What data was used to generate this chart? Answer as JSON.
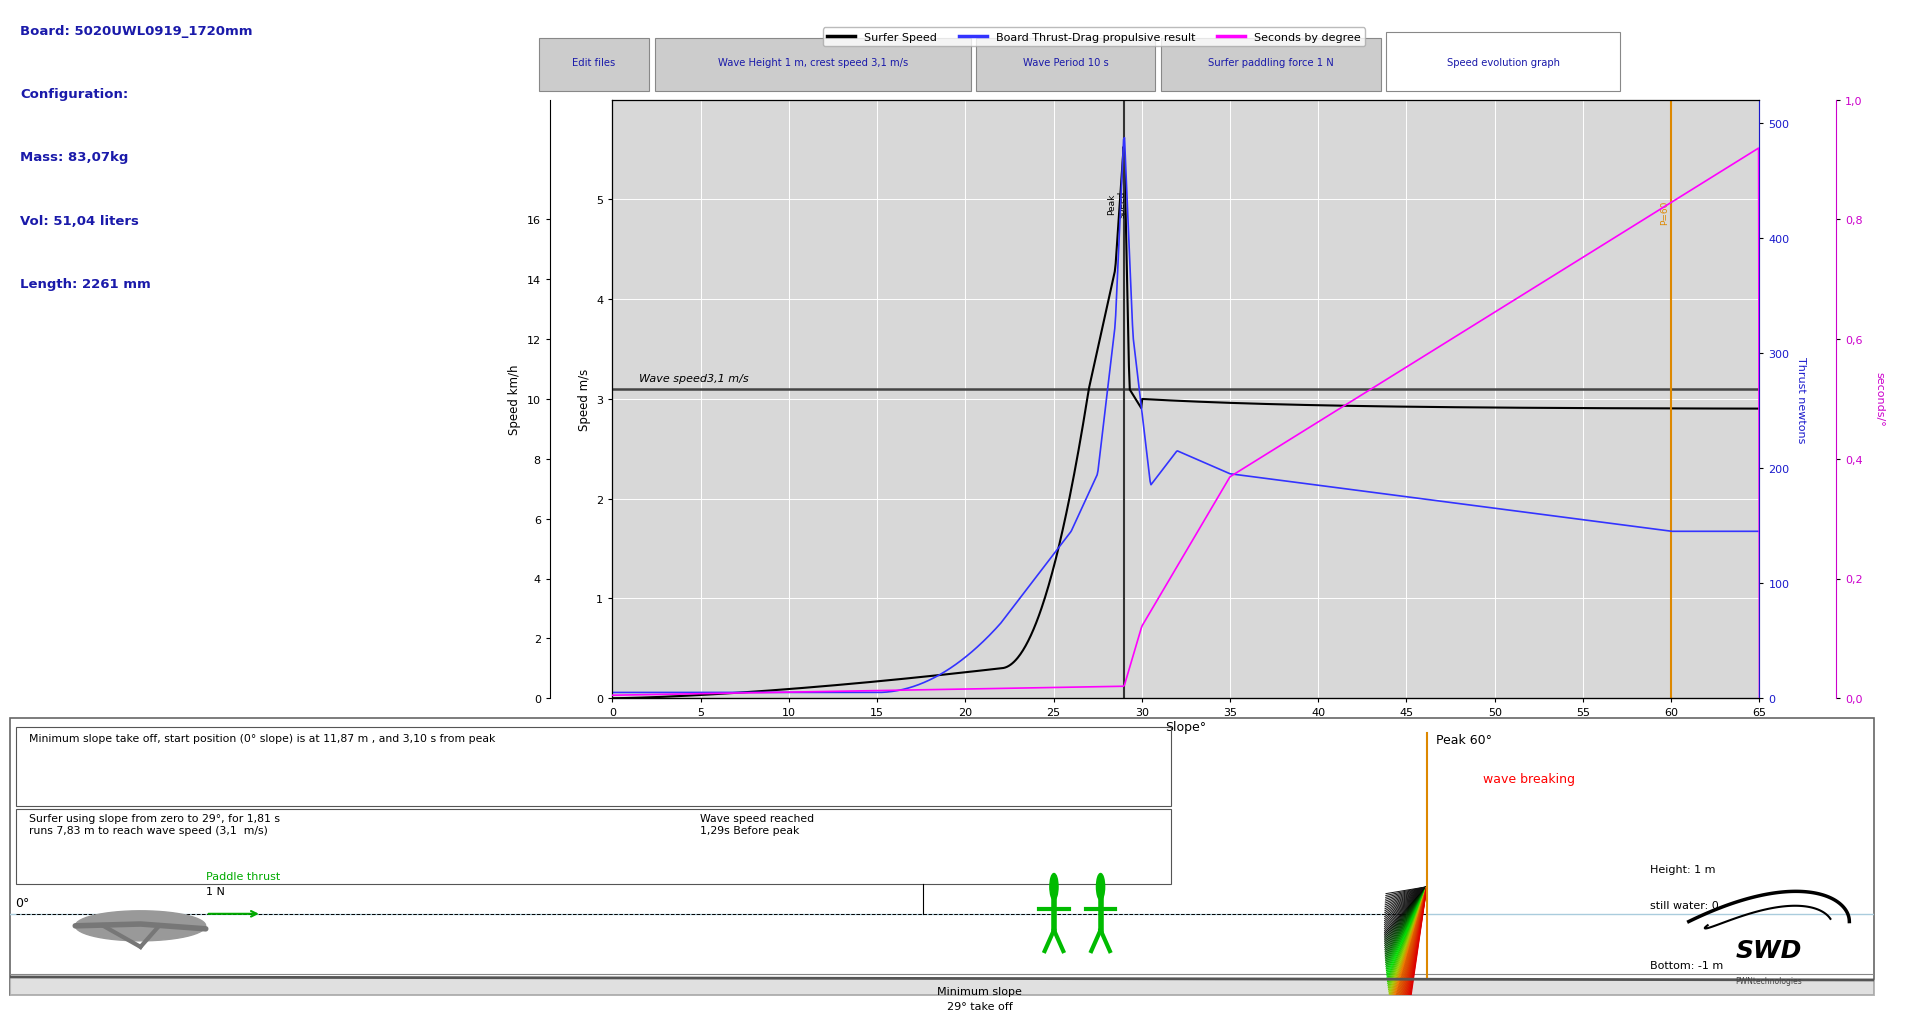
{
  "board_info": [
    "Board: 5020UWL0919_1720mm",
    "Configuration:",
    "Mass: 83,07kg",
    "Vol: 51,04 liters",
    "Length: 2261 mm"
  ],
  "tab_labels": [
    "Edit files",
    "Wave Height 1 m, crest speed 3,1 m/s",
    "Wave Period 10 s",
    "Surfer paddling force 1 N",
    "Speed evolution graph"
  ],
  "legend_items": [
    "Surfer Speed",
    "Board Thrust-Drag propulsive result",
    "Seconds by degree"
  ],
  "wave_speed_label": "Wave speed3,1 m/s",
  "xlim": [
    0,
    65
  ],
  "ylim_ms": [
    0,
    6
  ],
  "ylim_kmh": [
    0,
    20
  ],
  "ylim_thrust": [
    0,
    520
  ],
  "ylim_sec": [
    0,
    1.0
  ],
  "xlabel": "Slope°",
  "ylabel_ms": "Speed m/s",
  "ylabel_kmh": "Speed km/h",
  "ylabel_thrust": "Thrust newtons",
  "ylabel_sec": "seconds/°",
  "ms_yticks": [
    0,
    1,
    2,
    3,
    4,
    5
  ],
  "kmh_yticks": [
    0,
    2,
    4,
    6,
    8,
    10,
    12,
    14,
    16
  ],
  "thrust_yticks": [
    0,
    100,
    200,
    300,
    400,
    500
  ],
  "sec_ytick_vals": [
    0.0,
    0.2,
    0.4,
    0.6,
    0.8,
    1.0
  ],
  "sec_ytick_labels": [
    "0,0",
    "0,2",
    "0,4",
    "0,6",
    "0,8",
    "1,0"
  ],
  "xticks": [
    0,
    5,
    10,
    15,
    20,
    25,
    30,
    35,
    40,
    45,
    50,
    55,
    60,
    65
  ],
  "vertical_line_x": 29,
  "orange_line_x": 60,
  "wave_speed_ms": 3.1,
  "chart_bg": "#d8d8d8",
  "annotation_min_slope": "Minimum slope take off, start position (0° slope) is at 11,87 m , and 3,10 s from peak",
  "annotation_surfer": "Surfer using slope from zero to 29°, for 1,81 s\nruns 7,83 m to reach wave speed (3,1  m/s)",
  "annotation_wave_speed_reached": "Wave speed reached\n1,29s Before peak",
  "annotation_paddle_label": "Paddle thrust",
  "annotation_paddle_n": "1 N",
  "annotation_peak": "Peak 60°",
  "annotation_wave_breaking": "wave breaking",
  "annotation_height": "Height: 1 m",
  "annotation_still_water": "still water: 0",
  "annotation_bottom": "Bottom: -1 m",
  "annotation_min_slope_bottom_l1": "Minimum slope",
  "annotation_min_slope_bottom_l2": "29° take off",
  "annotation_0deg": "0°",
  "peak_speed_rotated": "Peak speed",
  "p60_rotated": "P=60",
  "swd_logo_text": "SWD",
  "swd_sub_text": "PWNtechnologies",
  "bottom_panel_bg": "#ffffff"
}
